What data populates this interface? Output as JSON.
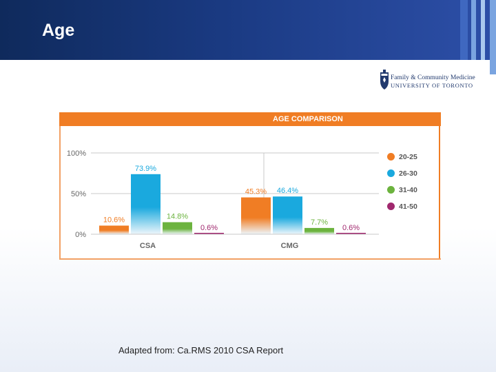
{
  "slide": {
    "title": "Age",
    "source_note": "Adapted from: Ca.RMS 2010 CSA Report"
  },
  "logo": {
    "line1": "Family & Community Medicine",
    "line2": "UNIVERSITY OF TORONTO"
  },
  "colors": {
    "header_dark": "#0f2a5c",
    "accent_orange": "#f07d24",
    "series_20_25": "#f07d24",
    "series_26_30": "#1aa9de",
    "series_31_40": "#6cb33e",
    "series_41_50": "#a0286e"
  },
  "chart_data": {
    "type": "bar",
    "title": "AGE COMPARISON",
    "categories": [
      "CSA",
      "CMG"
    ],
    "series": [
      {
        "name": "20-25",
        "values": [
          10.6,
          45.3
        ],
        "labels": [
          "10.6%",
          "45.3%"
        ],
        "color": "#f07d24"
      },
      {
        "name": "26-30",
        "values": [
          73.9,
          46.4
        ],
        "labels": [
          "73.9%",
          "46.4%"
        ],
        "color": "#1aa9de"
      },
      {
        "name": "31-40",
        "values": [
          14.8,
          7.7
        ],
        "labels": [
          "14.8%",
          "7.7%"
        ],
        "color": "#6cb33e"
      },
      {
        "name": "41-50",
        "values": [
          0.6,
          0.6
        ],
        "labels": [
          "0.6%",
          "0.6%"
        ],
        "color": "#a0286e"
      }
    ],
    "y_ticks": [
      "0%",
      "50%",
      "100%"
    ],
    "ylim": [
      0,
      100
    ],
    "grid": true,
    "legend": "right",
    "xlabel": "",
    "ylabel": ""
  }
}
